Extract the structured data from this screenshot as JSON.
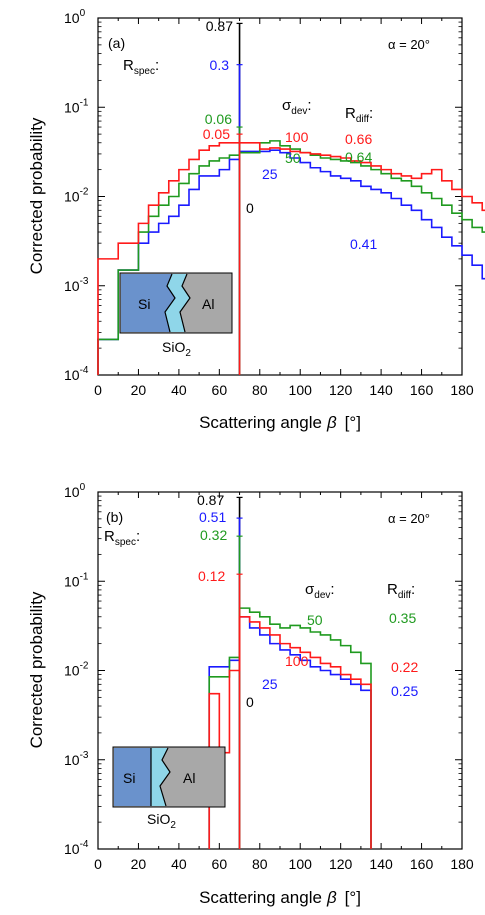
{
  "colors": {
    "zero": "#000000",
    "s25": "#1a1aff",
    "s50": "#1f9a1f",
    "s100": "#ff1a1a"
  },
  "chart_data": [
    {
      "panel_label": "(a)",
      "type": "line",
      "step": true,
      "x_bin_width": 5,
      "xlabel_main": "Scattering angle",
      "xlabel_symbol": "β",
      "xlabel_unit": "[°]",
      "ylabel": "Corrected probability",
      "xlim": [
        0,
        180
      ],
      "x_ticks": [
        0,
        20,
        40,
        60,
        80,
        100,
        120,
        140,
        160,
        180
      ],
      "ylim": [
        0.0001,
        1
      ],
      "y_scale": "log",
      "y_tick_base": "10",
      "y_tick_exponents": [
        "-4",
        "-3",
        "-2",
        "-1",
        "0"
      ],
      "alpha_label": "α = 20°",
      "rspec_label": "R",
      "rspec_sub": "spec",
      "rspec_colon": ":",
      "sigma_label": "σ",
      "sigma_sub": "dev",
      "sigma_colon": ":",
      "rdiff_label": "R",
      "rdiff_sub": "diff",
      "rdiff_colon": ":",
      "inset": {
        "left": "Si",
        "right": "Al",
        "bottom": "SiO",
        "bottom_sub": "2"
      },
      "specular_angle": 70,
      "series": [
        {
          "name": "0",
          "color_key": "zero",
          "rspec": "0.87",
          "spike": 0.87
        },
        {
          "name": "25",
          "color_key": "s25",
          "rspec": "0.3",
          "rdiff": "0.41",
          "spike": 0.3,
          "values": [
            0.00025,
            0.00025,
            0.0015,
            0.0015,
            0.003,
            0.004,
            0.005,
            0.006,
            0.008,
            0.012,
            0.017,
            0.017,
            0.02,
            0.026,
            0.032,
            0.032,
            0.032,
            0.033,
            0.031,
            0.027,
            0.024,
            0.021,
            0.019,
            0.017,
            0.016,
            0.015,
            0.013,
            0.012,
            0.011,
            0.0095,
            0.008,
            0.007,
            0.0055,
            0.0045,
            0.0035,
            0.0028,
            0.0022,
            0.0017,
            0.0012,
            0.001,
            0.0009,
            0.0009,
            0.0005,
            0.0005,
            0.0005,
            0.0003
          ]
        },
        {
          "name": "50",
          "color_key": "s50",
          "rspec": "0.06",
          "rdiff": "0.64",
          "spike": 0.06,
          "values": [
            0.00025,
            0.00025,
            0.0015,
            0.0015,
            0.004,
            0.006,
            0.008,
            0.01,
            0.014,
            0.018,
            0.022,
            0.025,
            0.027,
            0.029,
            0.031,
            0.031,
            0.04,
            0.042,
            0.037,
            0.034,
            0.031,
            0.029,
            0.027,
            0.026,
            0.025,
            0.024,
            0.022,
            0.02,
            0.018,
            0.016,
            0.015,
            0.013,
            0.011,
            0.0095,
            0.008,
            0.0065,
            0.0055,
            0.0045,
            0.004,
            0.003,
            0.0025,
            0.002,
            0.0015,
            0.0015,
            0.0014,
            0.0003
          ]
        },
        {
          "name": "100",
          "color_key": "s100",
          "rspec": "0.05",
          "rdiff": "0.66",
          "spike": 0.05,
          "values": [
            0.002,
            0.002,
            0.003,
            0.003,
            0.005,
            0.008,
            0.011,
            0.015,
            0.02,
            0.026,
            0.033,
            0.037,
            0.04,
            0.04,
            0.04,
            0.04,
            0.034,
            0.035,
            0.034,
            0.032,
            0.031,
            0.03,
            0.029,
            0.028,
            0.027,
            0.025,
            0.024,
            0.022,
            0.02,
            0.018,
            0.017,
            0.016,
            0.018,
            0.02,
            0.015,
            0.012,
            0.01,
            0.0085,
            0.007,
            0.006,
            0.005,
            0.004,
            0.0035,
            0.003,
            0.002,
            0.0015
          ]
        }
      ]
    },
    {
      "panel_label": "(b)",
      "type": "line",
      "step": true,
      "x_bin_width": 5,
      "xlabel_main": "Scattering angle",
      "xlabel_symbol": "β",
      "xlabel_unit": "[°]",
      "ylabel": "Corrected probability",
      "xlim": [
        0,
        180
      ],
      "x_ticks": [
        0,
        20,
        40,
        60,
        80,
        100,
        120,
        140,
        160,
        180
      ],
      "ylim": [
        0.0001,
        1
      ],
      "y_scale": "log",
      "y_tick_base": "10",
      "y_tick_exponents": [
        "-4",
        "-3",
        "-2",
        "-1",
        "0"
      ],
      "alpha_label": "α = 20°",
      "rspec_label": "R",
      "rspec_sub": "spec",
      "rspec_colon": ":",
      "sigma_label": "σ",
      "sigma_sub": "dev",
      "sigma_colon": ":",
      "rdiff_label": "R",
      "rdiff_sub": "diff",
      "rdiff_colon": ":",
      "inset": {
        "left": "Si",
        "right": "Al",
        "bottom": "SiO",
        "bottom_sub": "2"
      },
      "specular_angle": 70,
      "series": [
        {
          "name": "0",
          "color_key": "zero",
          "rspec": "0.87",
          "spike": 0.87
        },
        {
          "name": "25",
          "color_key": "s25",
          "rspec": "0.51",
          "rdiff": "0.25",
          "spike": 0.51,
          "start": 55,
          "values": [
            0.011,
            0.011,
            0.013,
            0.04,
            0.03,
            0.025,
            0.02,
            0.017,
            0.015,
            0.013,
            0.011,
            0.01,
            0.009,
            0.008,
            0.007,
            0.006
          ]
        },
        {
          "name": "50",
          "color_key": "s50",
          "rspec": "0.32",
          "rdiff": "0.35",
          "spike": 0.32,
          "start": 55,
          "values": [
            0.0085,
            0.0085,
            0.014,
            0.05,
            0.045,
            0.04,
            0.033,
            0.03,
            0.032,
            0.03,
            0.027,
            0.025,
            0.022,
            0.019,
            0.016,
            0.012
          ]
        },
        {
          "name": "100",
          "color_key": "s100",
          "rspec": "0.12",
          "rdiff": "0.22",
          "spike": 0.12,
          "start": 55,
          "values": [
            0.0055,
            0.0012,
            0.01,
            0.04,
            0.035,
            0.03,
            0.025,
            0.02,
            0.018,
            0.016,
            0.014,
            0.012,
            0.011,
            0.009,
            0.008,
            0.007
          ]
        }
      ]
    }
  ]
}
